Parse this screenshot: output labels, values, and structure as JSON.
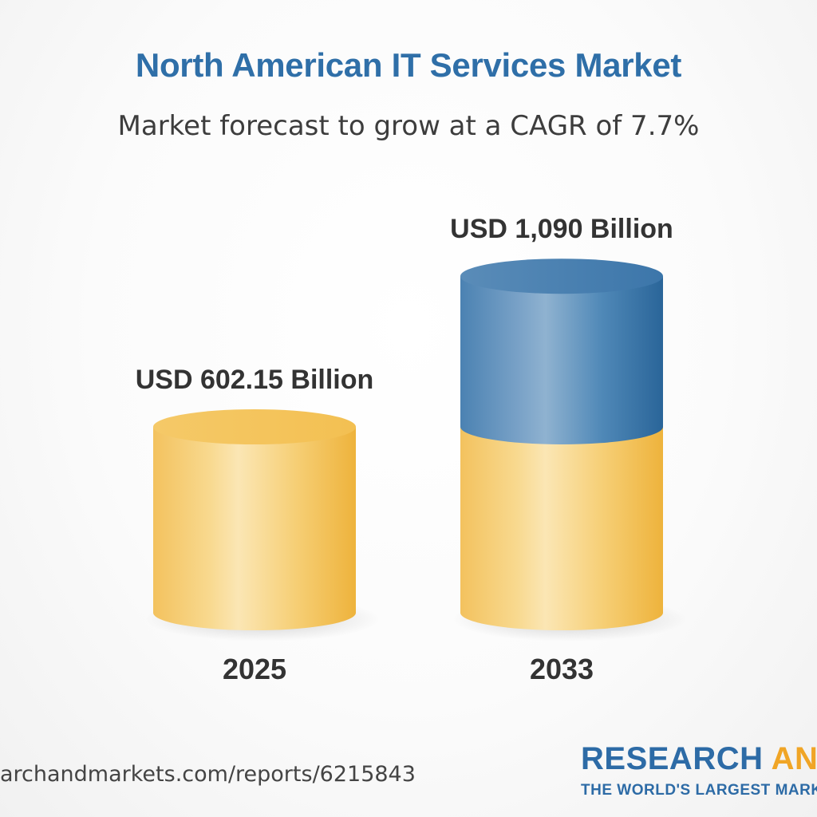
{
  "header": {
    "title": "North American IT Services Market",
    "subtitle": "Market forecast to grow at a CAGR of 7.7%"
  },
  "chart_data": {
    "type": "bar",
    "style": "3d-cylinder",
    "categories": [
      "2025",
      "2033"
    ],
    "values": [
      602.15,
      1090
    ],
    "value_labels": [
      "USD 602.15 Billion",
      "USD 1,090 Billion"
    ],
    "unit": "USD Billion",
    "cagr": "7.7%",
    "grid": false,
    "colors": {
      "base": "#f3c460",
      "base_highlight": "#fbe6b4",
      "growth": "#4d86b5",
      "growth_highlight": "#8fb2d0"
    }
  },
  "footer": {
    "url": "archandmarkets.com/reports/6215843",
    "logo_main": "RESEARCH",
    "logo_and": "AND",
    "logo_tagline": "THE WORLD'S LARGEST MARK"
  }
}
